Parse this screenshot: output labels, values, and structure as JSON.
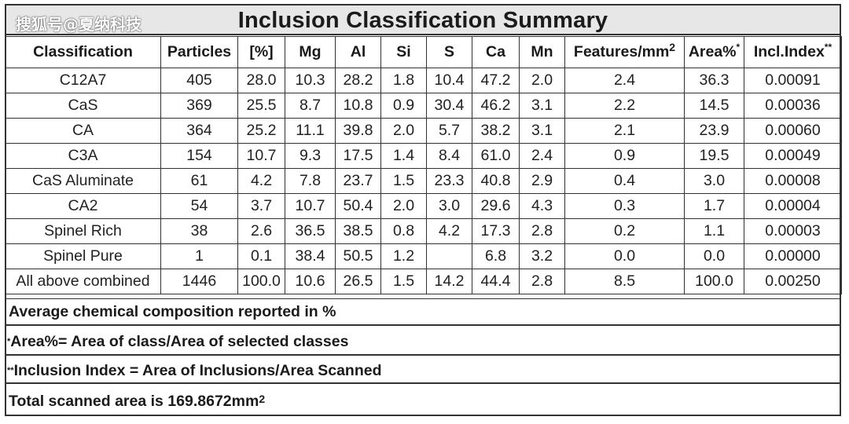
{
  "watermark": "搜狐号@夏纳科技",
  "title": "Inclusion Classification Summary",
  "headers": {
    "classification": "Classification",
    "particles": "Particles",
    "pct": "[%]",
    "mg": "Mg",
    "al": "Al",
    "si": "Si",
    "s": "S",
    "ca": "Ca",
    "mn": "Mn",
    "features": "Features/mm",
    "features_sup": "2",
    "area": "Area%",
    "area_sup": "*",
    "index": "Incl.Index",
    "index_sup": "**"
  },
  "rows": [
    [
      "C12A7",
      "405",
      "28.0",
      "10.3",
      "28.2",
      "1.8",
      "10.4",
      "47.2",
      "2.0",
      "2.4",
      "36.3",
      "0.00091"
    ],
    [
      "CaS",
      "369",
      "25.5",
      "8.7",
      "10.8",
      "0.9",
      "30.4",
      "46.2",
      "3.1",
      "2.2",
      "14.5",
      "0.00036"
    ],
    [
      "CA",
      "364",
      "25.2",
      "11.1",
      "39.8",
      "2.0",
      "5.7",
      "38.2",
      "3.1",
      "2.1",
      "23.9",
      "0.00060"
    ],
    [
      "C3A",
      "154",
      "10.7",
      "9.3",
      "17.5",
      "1.4",
      "8.4",
      "61.0",
      "2.4",
      "0.9",
      "19.5",
      "0.00049"
    ],
    [
      "CaS Aluminate",
      "61",
      "4.2",
      "7.8",
      "23.7",
      "1.5",
      "23.3",
      "40.8",
      "2.9",
      "0.4",
      "3.0",
      "0.00008"
    ],
    [
      "CA2",
      "54",
      "3.7",
      "10.7",
      "50.4",
      "2.0",
      "3.0",
      "29.6",
      "4.3",
      "0.3",
      "1.7",
      "0.00004"
    ],
    [
      "Spinel Rich",
      "38",
      "2.6",
      "36.5",
      "38.5",
      "0.8",
      "4.2",
      "17.3",
      "2.8",
      "0.2",
      "1.1",
      "0.00003"
    ],
    [
      "Spinel Pure",
      "1",
      "0.1",
      "38.4",
      "50.5",
      "1.2",
      "",
      "6.8",
      "3.2",
      "0.0",
      "0.0",
      "0.00000"
    ],
    [
      "All above combined",
      "1446",
      "100.0",
      "10.6",
      "26.5",
      "1.5",
      "14.2",
      "44.4",
      "2.8",
      "8.5",
      "100.0",
      "0.00250"
    ]
  ],
  "notes": {
    "avg": "Average chemical composition reported in %",
    "area_mark": "*",
    "area_def": "Area%= Area of class/Area of selected classes",
    "index_mark": "**",
    "index_def": "Inclusion Index = Area of Inclusions/Area Scanned",
    "total": "Total scanned area is 169.8672mm",
    "total_sup": "2"
  }
}
